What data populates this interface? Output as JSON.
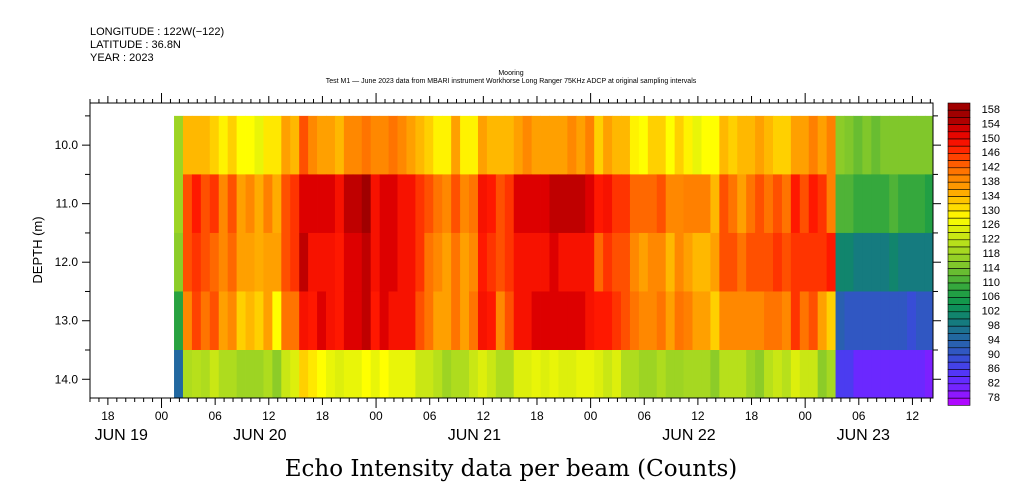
{
  "header": {
    "longitude": "LONGITUDE : 122W(−122)",
    "latitude": "LATITUDE : 36.8N",
    "year": "YEAR : 2023",
    "plot_type": "Mooring",
    "subtitle": "Test M1 — June 2023 data from MBARI instrument Workhorse Long Ranger 75KHz ADCP at original sampling intervals"
  },
  "chart_data": {
    "type": "heatmap",
    "title": "Echo Intensity data per beam (Counts)",
    "xlabel": "",
    "ylabel": "DEPTH (m)",
    "x_units": "hours since JUN 20 2023 00:00",
    "xlim": [
      -8.0,
      86.3
    ],
    "ylim": [
      9.28,
      14.32
    ],
    "y_reversed": true,
    "x_start_hour": 1.4,
    "dx_hours": 1.0,
    "depths": [
      10.0,
      11.0,
      12.0,
      13.0,
      14.0
    ],
    "x_ticks": [
      {
        "hour": -6,
        "label": "18"
      },
      {
        "hour": 0,
        "label": "00"
      },
      {
        "hour": 6,
        "label": "06"
      },
      {
        "hour": 12,
        "label": "12"
      },
      {
        "hour": 18,
        "label": "18"
      },
      {
        "hour": 24,
        "label": "00"
      },
      {
        "hour": 30,
        "label": "06"
      },
      {
        "hour": 36,
        "label": "12"
      },
      {
        "hour": 42,
        "label": "18"
      },
      {
        "hour": 48,
        "label": "00"
      },
      {
        "hour": 54,
        "label": "06"
      },
      {
        "hour": 60,
        "label": "12"
      },
      {
        "hour": 66,
        "label": "18"
      },
      {
        "hour": 72,
        "label": "00"
      },
      {
        "hour": 78,
        "label": "06"
      },
      {
        "hour": 84,
        "label": "12"
      }
    ],
    "date_labels": [
      {
        "hour": -4.5,
        "label": "JUN 19"
      },
      {
        "hour": 11,
        "label": "JUN 20"
      },
      {
        "hour": 35,
        "label": "JUN 21"
      },
      {
        "hour": 59,
        "label": "JUN 22"
      },
      {
        "hour": 78.5,
        "label": "JUN 23"
      }
    ],
    "y_ticks": [
      {
        "value": 10.0,
        "label": "10.0"
      },
      {
        "value": 11.0,
        "label": "11.0"
      },
      {
        "value": 12.0,
        "label": "12.0"
      },
      {
        "value": 13.0,
        "label": "13.0"
      },
      {
        "value": 14.0,
        "label": "14.0"
      }
    ],
    "values": [
      [
        120,
        136,
        136,
        136,
        134,
        131,
        134,
        130,
        130,
        128,
        132,
        132,
        138,
        136,
        146,
        141,
        138,
        138,
        136,
        141,
        141,
        143,
        141,
        141,
        143,
        141,
        138,
        136,
        134,
        131,
        131,
        138,
        131,
        131,
        138,
        136,
        136,
        136,
        138,
        141,
        138,
        138,
        138,
        138,
        141,
        138,
        142,
        134,
        138,
        136,
        136,
        131,
        130,
        134,
        134,
        130,
        134,
        131,
        128,
        130,
        130,
        136,
        134,
        136,
        136,
        138,
        136,
        134,
        134,
        138,
        138,
        142,
        138,
        142,
        118,
        117,
        115,
        117,
        115,
        117,
        117,
        117,
        117,
        117,
        117,
        113
      ],
      [
        120,
        146,
        150,
        146,
        148,
        141,
        146,
        138,
        141,
        137,
        142,
        137,
        146,
        148,
        154,
        154,
        154,
        154,
        151,
        156,
        156,
        159,
        151,
        154,
        154,
        151,
        151,
        148,
        146,
        143,
        141,
        146,
        141,
        143,
        151,
        150,
        146,
        148,
        154,
        154,
        154,
        154,
        156,
        156,
        156,
        156,
        154,
        150,
        151,
        148,
        148,
        144,
        144,
        144,
        146,
        141,
        141,
        142,
        142,
        142,
        136,
        146,
        143,
        138,
        143,
        146,
        143,
        146,
        143,
        150,
        146,
        150,
        148,
        142,
        113,
        113,
        111,
        111,
        111,
        111,
        113,
        111,
        111,
        111,
        109,
        107
      ],
      [
        118,
        146,
        148,
        146,
        144,
        141,
        144,
        138,
        138,
        137,
        138,
        138,
        146,
        148,
        156,
        151,
        151,
        151,
        150,
        154,
        154,
        156,
        151,
        154,
        154,
        151,
        151,
        148,
        143,
        141,
        138,
        143,
        138,
        141,
        150,
        148,
        146,
        148,
        151,
        151,
        151,
        151,
        154,
        151,
        151,
        151,
        151,
        144,
        148,
        146,
        146,
        141,
        138,
        141,
        141,
        136,
        141,
        138,
        136,
        136,
        138,
        146,
        146,
        143,
        146,
        146,
        146,
        148,
        146,
        148,
        148,
        148,
        148,
        150,
        103,
        103,
        101,
        101,
        101,
        101,
        103,
        101,
        101,
        101,
        101,
        99
      ],
      [
        110,
        141,
        147,
        143,
        146,
        138,
        141,
        134,
        136,
        134,
        138,
        130,
        143,
        143,
        151,
        150,
        154,
        151,
        150,
        154,
        154,
        156,
        150,
        154,
        151,
        151,
        151,
        146,
        143,
        138,
        138,
        143,
        138,
        143,
        151,
        150,
        141,
        146,
        151,
        151,
        154,
        154,
        154,
        154,
        154,
        154,
        151,
        150,
        150,
        148,
        146,
        143,
        141,
        141,
        143,
        138,
        143,
        142,
        138,
        138,
        134,
        141,
        141,
        141,
        141,
        141,
        143,
        143,
        141,
        148,
        143,
        146,
        138,
        134,
        95,
        93,
        93,
        93,
        93,
        93,
        93,
        93,
        91,
        93,
        93,
        89
      ],
      [
        97,
        122,
        123,
        122,
        125,
        122,
        122,
        120,
        120,
        120,
        122,
        118,
        125,
        127,
        134,
        132,
        130,
        128,
        127,
        128,
        128,
        130,
        128,
        130,
        128,
        128,
        128,
        125,
        125,
        123,
        120,
        122,
        122,
        125,
        127,
        125,
        122,
        122,
        127,
        127,
        128,
        127,
        128,
        127,
        127,
        128,
        128,
        127,
        125,
        127,
        122,
        122,
        120,
        120,
        122,
        120,
        120,
        121,
        121,
        121,
        118,
        123,
        123,
        123,
        120,
        118,
        123,
        125,
        123,
        127,
        125,
        125,
        118,
        121,
        88,
        88,
        84,
        84,
        84,
        84,
        84,
        84,
        84,
        84,
        82,
        82
      ]
    ],
    "colorbar": {
      "levels": [
        158,
        154,
        150,
        146,
        142,
        138,
        134,
        130,
        126,
        122,
        118,
        114,
        110,
        106,
        102,
        98,
        94,
        90,
        86,
        82,
        78
      ],
      "colors": [
        "#a00000",
        "#dd0000",
        "#ff1800",
        "#ff5000",
        "#ff8000",
        "#ffa000",
        "#ffd000",
        "#ffff00",
        "#d2ea10",
        "#aedc1e",
        "#8ccc28",
        "#5cb834",
        "#28a240",
        "#0c9450",
        "#128076",
        "#1f6c98",
        "#2c5cb8",
        "#3c48e0",
        "#5a30ff",
        "#7c20ff",
        "#c000ff"
      ]
    }
  }
}
